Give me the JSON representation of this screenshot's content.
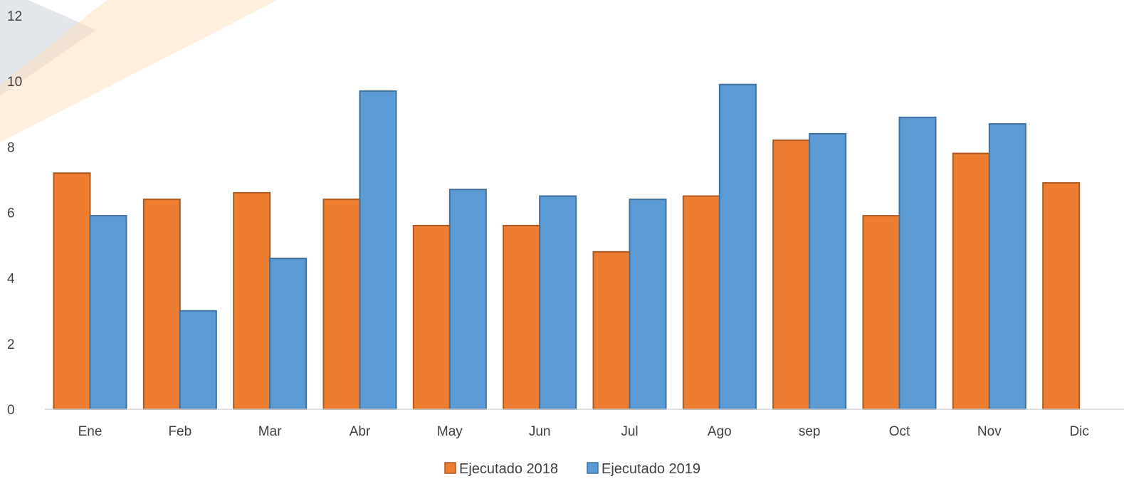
{
  "chart_data": {
    "type": "bar",
    "categories": [
      "Ene",
      "Feb",
      "Mar",
      "Abr",
      "May",
      "Jun",
      "Jul",
      "Ago",
      "sep",
      "Oct",
      "Nov",
      "Dic"
    ],
    "series": [
      {
        "name": "Ejecutado 2018",
        "color": "#ED7D31",
        "values": [
          7.2,
          6.4,
          6.6,
          6.4,
          5.6,
          5.6,
          4.8,
          6.5,
          8.2,
          5.9,
          7.8,
          6.9
        ]
      },
      {
        "name": "Ejecutado 2019",
        "color": "#5B9BD5",
        "values": [
          5.9,
          3.0,
          4.6,
          9.7,
          6.7,
          6.5,
          6.4,
          9.9,
          8.4,
          8.9,
          8.7,
          null
        ]
      }
    ],
    "ylim": [
      0,
      12
    ],
    "yticks": [
      0,
      2,
      4,
      6,
      8,
      10,
      12
    ],
    "grid": false,
    "legend": "bottom-center"
  }
}
